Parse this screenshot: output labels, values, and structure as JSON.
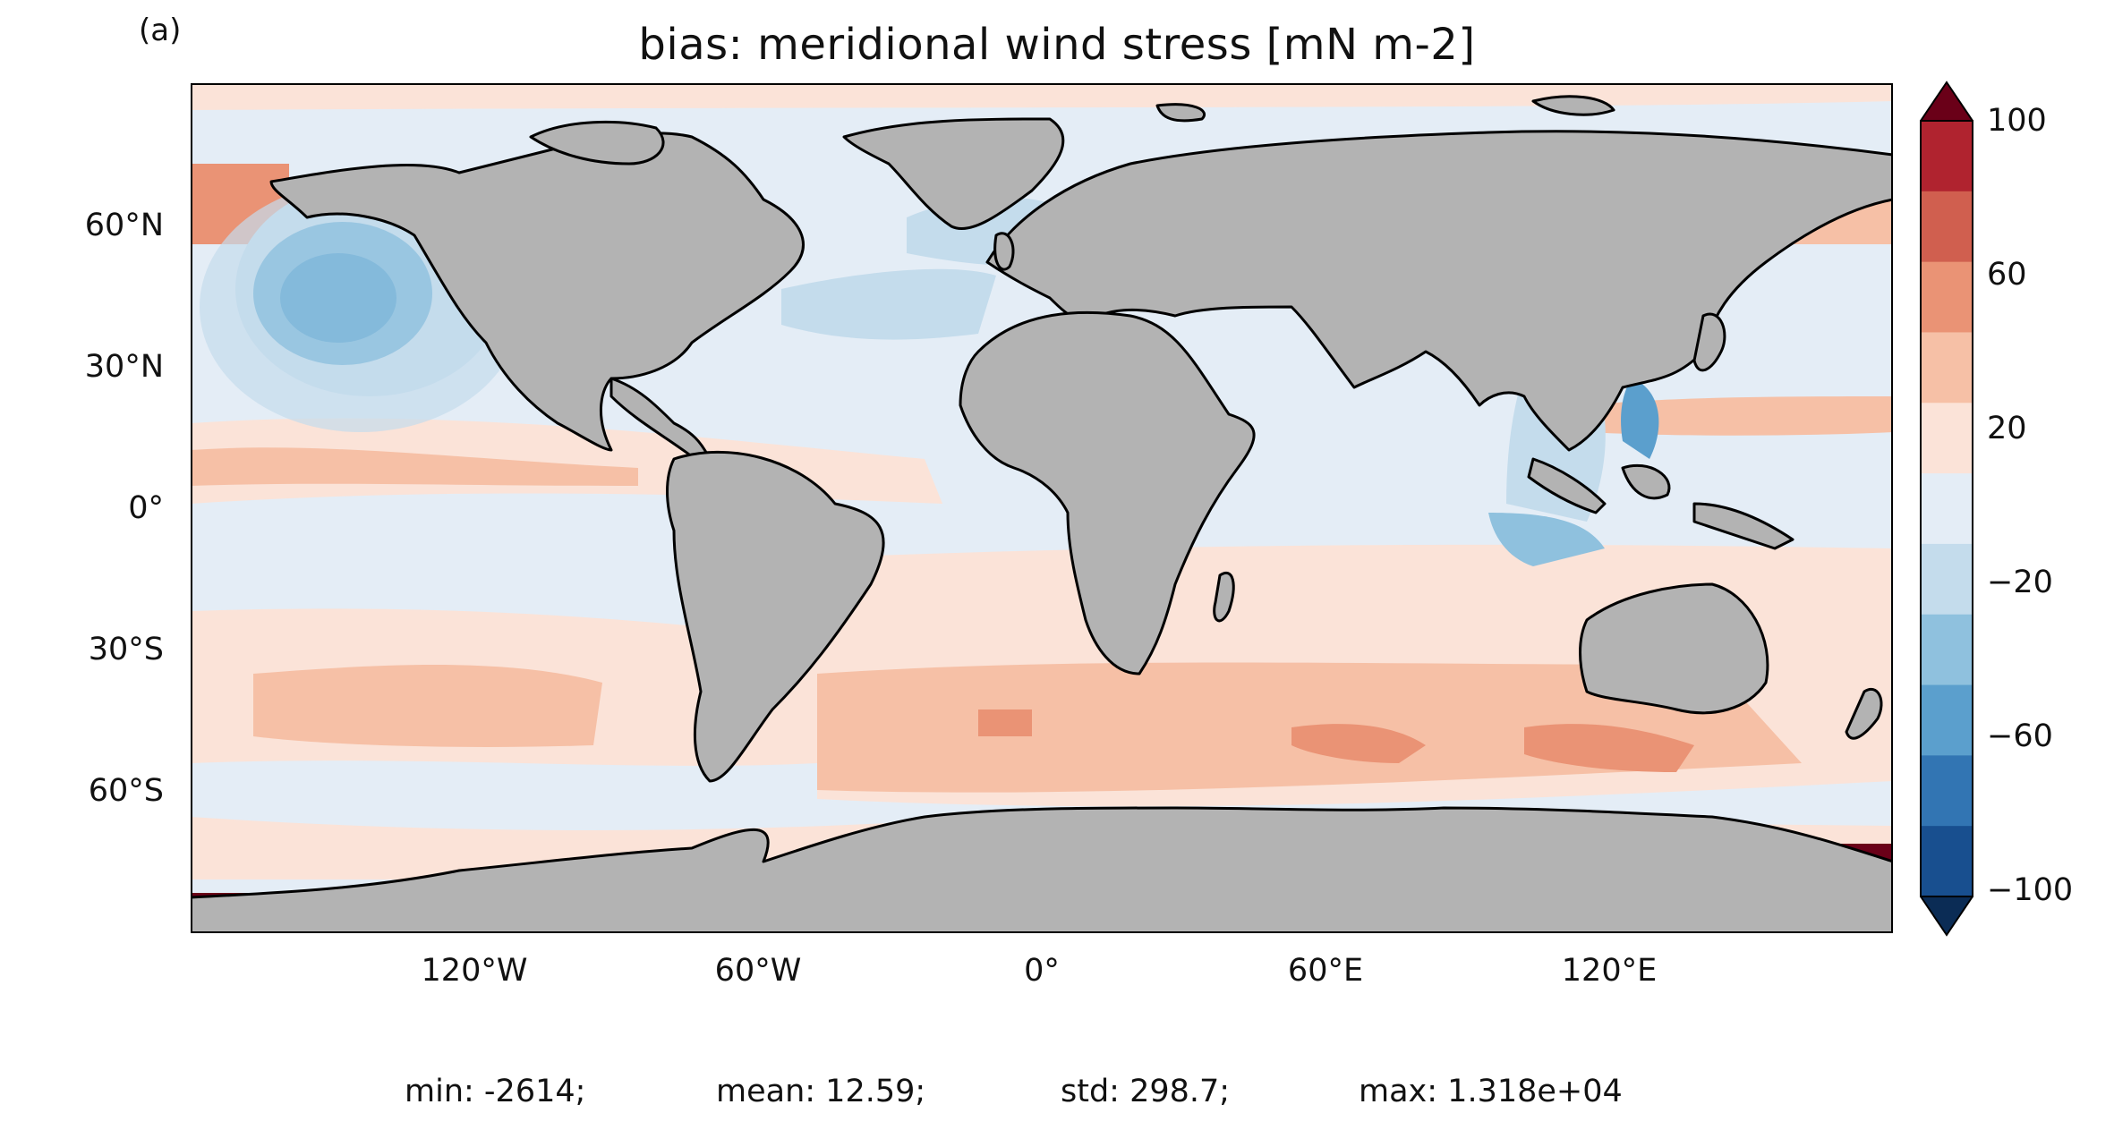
{
  "panel_label": "(a)",
  "title": "bias: meridional wind stress [mN m-2]",
  "lat_labels": [
    "60°N",
    "30°N",
    "0°",
    "30°S",
    "60°S"
  ],
  "lon_labels": [
    "120°W",
    "60°W",
    "0°",
    "60°E",
    "120°E"
  ],
  "colorbar": {
    "tick_labels": [
      "100",
      "60",
      "20",
      "−20",
      "−60",
      "−100"
    ],
    "levels": [
      -100,
      -80,
      -60,
      -40,
      -20,
      0,
      20,
      40,
      60,
      80,
      100
    ],
    "colors": [
      "#184f8f",
      "#3275b3",
      "#5b9fcd",
      "#8fc1de",
      "#c4dcec",
      "#e4edf6",
      "#fbe3d8",
      "#f6c0a6",
      "#ea9375",
      "#d05f4f",
      "#b0232f"
    ],
    "extend_low_color": "#0b2c55",
    "extend_high_color": "#6a0018"
  },
  "colors": {
    "land": "#b3b3b3",
    "coast": "#000000",
    "background": "#e4edf6"
  },
  "stats": {
    "min": "min: -2614;",
    "mean": "mean: 12.59;",
    "std": "std: 298.7;",
    "max": "max: 1.318e+04"
  }
}
